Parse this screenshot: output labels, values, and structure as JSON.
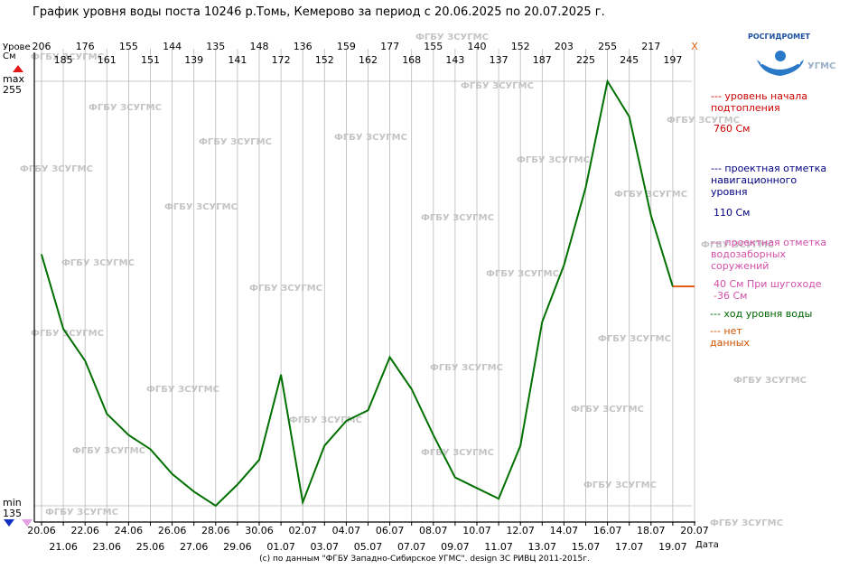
{
  "title": "График уровня воды поста 10246 р.Томь, Кемерово за период с 20.06.2025 по 20.07.2025 г.",
  "footer": "(с) по данным \"ФГБУ Западно-Сибирское УГМС\". design ЗС РИВЦ 2011-2015г.",
  "logo": {
    "name": "РОСГИДРОМЕТ",
    "org": "УГМС",
    "icon": "water-drop-logo-icon"
  },
  "watermark": "ФГБУ ЗСУГМС",
  "axis": {
    "ylabel": "Урове\nСм",
    "max_label": "max",
    "max_value": "255",
    "min_label": "min",
    "min_value": "135",
    "xlabel": "Дата",
    "close_mark": "X"
  },
  "legend": [
    {
      "text": "--- уровень начала\n    подтопления",
      "color": "#cc0000"
    },
    {
      "text": "760 См",
      "color": "#cc0000"
    },
    {
      "text": "--- проектная отметка\n    навигационного\n    уровня",
      "color": "#000080"
    },
    {
      "text": "110 См",
      "color": "#000080"
    },
    {
      "text": "--- проектная отметка\n    водозаборных\n    соружений",
      "color": "#d44fa8"
    },
    {
      "text": "40 См При шугоходе\n-36 См",
      "color": "#d44fa8"
    },
    {
      "text": "--- ход уровня воды",
      "color": "#006400"
    },
    {
      "text": "--- нет\n    данных",
      "color": "#cc5200"
    }
  ],
  "chart_data": {
    "type": "line",
    "xlabel": "Дата",
    "ylabel": "Урове См",
    "ylim": [
      135,
      255
    ],
    "dates": [
      "20.06",
      "21.06",
      "22.06",
      "23.06",
      "24.06",
      "25.06",
      "26.06",
      "27.06",
      "28.06",
      "29.06",
      "30.06",
      "01.07",
      "02.07",
      "03.07",
      "04.07",
      "05.07",
      "06.07",
      "07.07",
      "08.07",
      "09.07",
      "10.07",
      "11.07",
      "12.07",
      "13.07",
      "14.07",
      "15.07",
      "16.07",
      "17.07",
      "18.07",
      "19.07",
      "20.07"
    ],
    "values": [
      206,
      185,
      176,
      161,
      155,
      151,
      144,
      139,
      135,
      141,
      148,
      172,
      136,
      152,
      159,
      162,
      177,
      168,
      155,
      143,
      140,
      137,
      152,
      187,
      203,
      225,
      255,
      245,
      217,
      197,
      null
    ],
    "top_labels": [
      "206",
      "185",
      "176",
      "161",
      "155",
      "151",
      "144",
      "139",
      "135",
      "141",
      "148",
      "172",
      "136",
      "152",
      "159",
      "162",
      "177",
      "168",
      "155",
      "143",
      "140",
      "137",
      "152",
      "187",
      "203",
      "225",
      "255",
      "245",
      "217",
      "197",
      "X"
    ],
    "series": [
      {
        "name": "ход уровня воды",
        "color": "#007000"
      },
      {
        "name": "нет данных",
        "color": "#e05a10"
      }
    ]
  }
}
